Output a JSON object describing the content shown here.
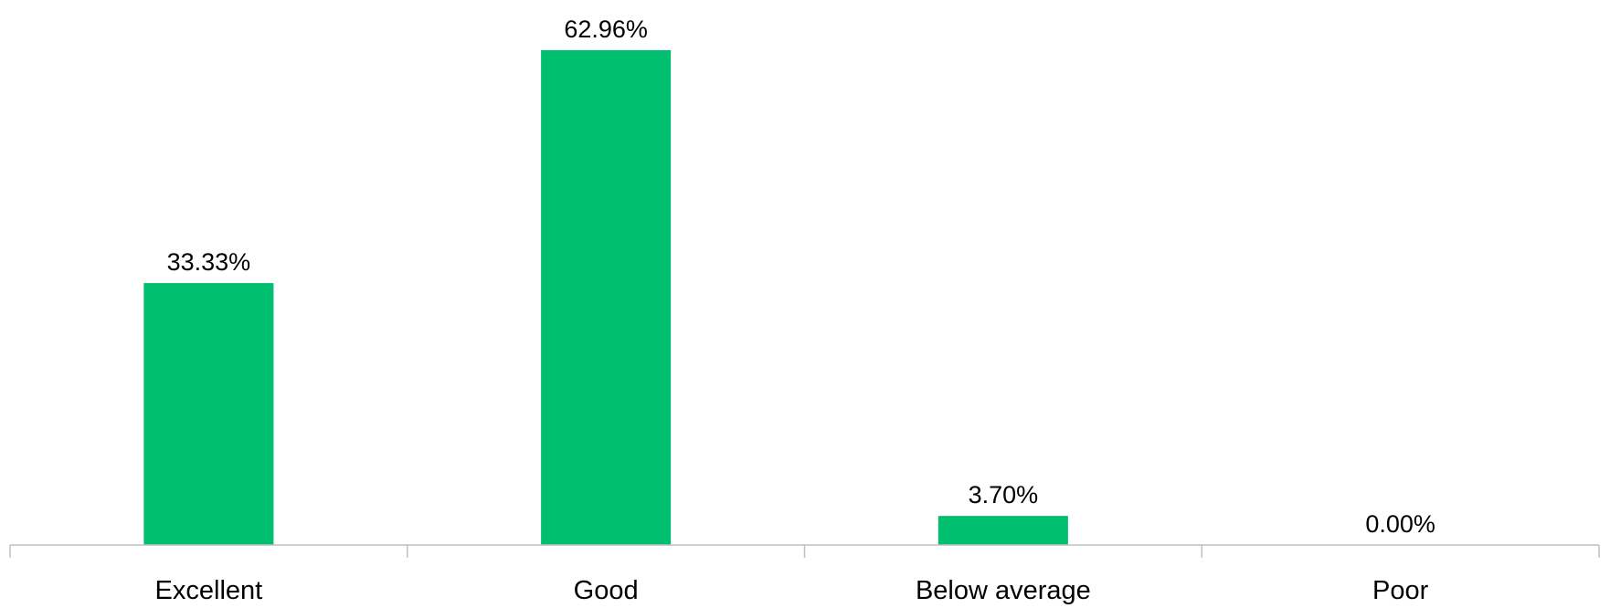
{
  "chart_data": {
    "type": "bar",
    "categories": [
      "Excellent",
      "Good",
      "Below average",
      "Poor"
    ],
    "values": [
      33.33,
      62.96,
      3.7,
      0.0
    ],
    "data_labels": [
      "33.33%",
      "62.96%",
      "3.70%",
      "0.00%"
    ],
    "title": "",
    "xlabel": "",
    "ylabel": "",
    "ylim": [
      0,
      62.96
    ],
    "grid": false,
    "legend": "none",
    "bar_color": "#00bf6f",
    "axis_color": "#bfbfbf"
  }
}
